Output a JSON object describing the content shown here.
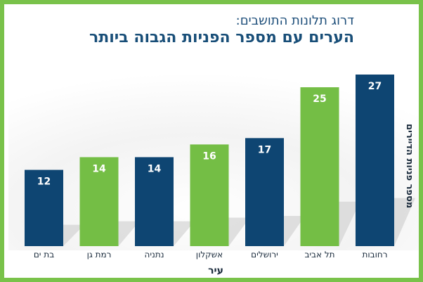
{
  "chart_data": {
    "type": "bar",
    "subtitle": "דרוג תלונות התושבים:",
    "title": "הערים עם מספר הפניות הגבוה ביותר",
    "xlabel": "עיר",
    "ylabel": "מספר פניות הדיירים",
    "categories": [
      "רחובות",
      "תל אביב",
      "ירושלים",
      "אשקלון",
      "נתניה",
      "רמת גן",
      "בת ים"
    ],
    "values": [
      27,
      25,
      17,
      16,
      14,
      14,
      12
    ],
    "bar_colors": [
      "#0e4572",
      "#74be45",
      "#0e4572",
      "#74be45",
      "#0e4572",
      "#74be45",
      "#0e4572"
    ],
    "ylim": [
      0,
      27
    ],
    "grid": false,
    "legend": "none"
  }
}
